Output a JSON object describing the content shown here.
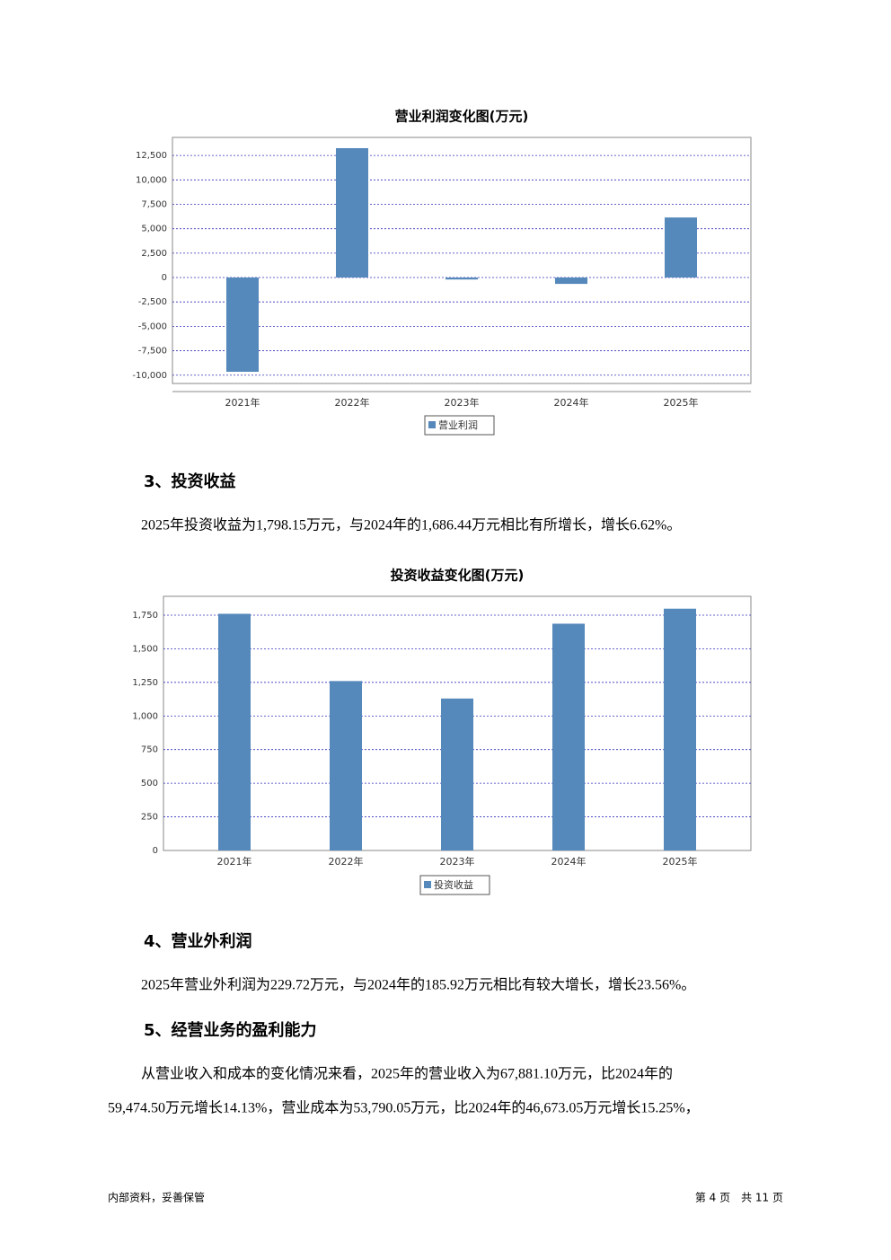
{
  "chart_data": [
    {
      "type": "bar",
      "title": "营业利润变化图(万元)",
      "categories": [
        "2021年",
        "2022年",
        "2023年",
        "2024年",
        "2025年"
      ],
      "series": [
        {
          "name": "营业利润",
          "color": "#5588bb",
          "values": [
            -9650,
            13250,
            -200,
            -650,
            6150
          ]
        }
      ],
      "ylim": [
        -10850,
        14350
      ],
      "yticks": [
        {
          "value": -10000,
          "label": "-10,000"
        },
        {
          "value": -7500,
          "label": "-7,500"
        },
        {
          "value": -5000,
          "label": "-5,000"
        },
        {
          "value": -2500,
          "label": "-2,500"
        },
        0,
        {
          "value": 2500,
          "label": "2,500"
        },
        {
          "value": 5000,
          "label": "5,000"
        },
        {
          "value": 7500,
          "label": "7,500"
        },
        {
          "value": 10000,
          "label": "10,000"
        },
        {
          "value": 12500,
          "label": "12,500"
        }
      ],
      "grid": true
    },
    {
      "type": "bar",
      "title": "投资收益变化图(万元)",
      "categories": [
        "2021年",
        "2022年",
        "2023年",
        "2024年",
        "2025年"
      ],
      "series": [
        {
          "name": "投资收益",
          "color": "#5588bb",
          "values": [
            1760,
            1260,
            1130,
            1686.44,
            1798.15
          ]
        }
      ],
      "ylim": [
        0,
        1890
      ],
      "yticks": [
        0,
        250,
        500,
        750,
        {
          "value": 1000,
          "label": "1,000"
        },
        {
          "value": 1250,
          "label": "1,250"
        },
        {
          "value": 1500,
          "label": "1,500"
        },
        {
          "value": 1750,
          "label": "1,750"
        }
      ],
      "grid": true
    }
  ],
  "sections": [
    {
      "heading": "3、投资收益",
      "lines": [
        "2025年投资收益为1,798.15万元，与2024年的1,686.44万元相比有所增长，增长6.62%。"
      ]
    },
    {
      "heading": "4、营业外利润",
      "lines": [
        "2025年营业外利润为229.72万元，与2024年的185.92万元相比有较大增长，增长23.56%。"
      ]
    },
    {
      "heading": "5、经营业务的盈利能力",
      "lines": [
        "从营业收入和成本的变化情况来看，2025年的营业收入为67,881.10万元，比2024年的",
        "59,474.50万元增长14.13%，营业成本为53,790.05万元，比2024年的46,673.05万元增长15.25%，"
      ]
    }
  ],
  "footer": {
    "left": "内部资料，妥善保管",
    "right": "第 4 页　共 11 页"
  }
}
